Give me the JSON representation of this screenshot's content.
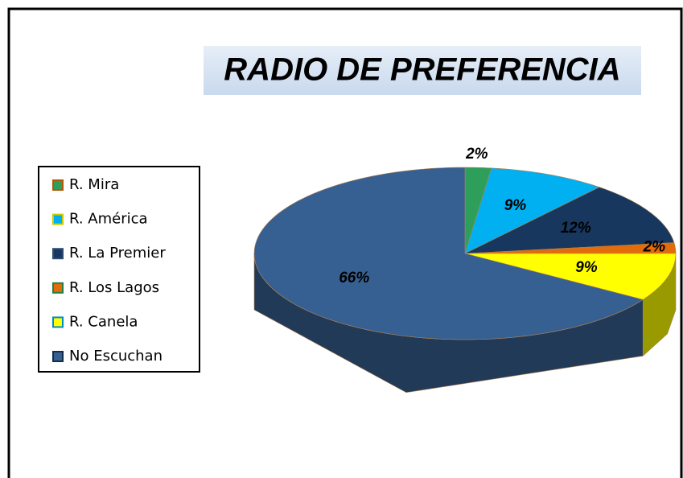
{
  "chart_data": {
    "type": "pie",
    "title": "RADIO DE PREFERENCIA",
    "categories": [
      "R. Mira",
      "R. América",
      "R. La Premier",
      "R. Los Lagos",
      "R. Canela",
      "No Escuchan"
    ],
    "values": [
      2,
      9,
      12,
      2,
      9,
      66
    ],
    "value_labels": [
      "2%",
      "9%",
      "12%",
      "2%",
      "9%",
      "66%"
    ],
    "colors": [
      "#2e9e5b",
      "#00b0f0",
      "#17375e",
      "#e36c0a",
      "#ffff00",
      "#376092"
    ],
    "legend": "left"
  }
}
